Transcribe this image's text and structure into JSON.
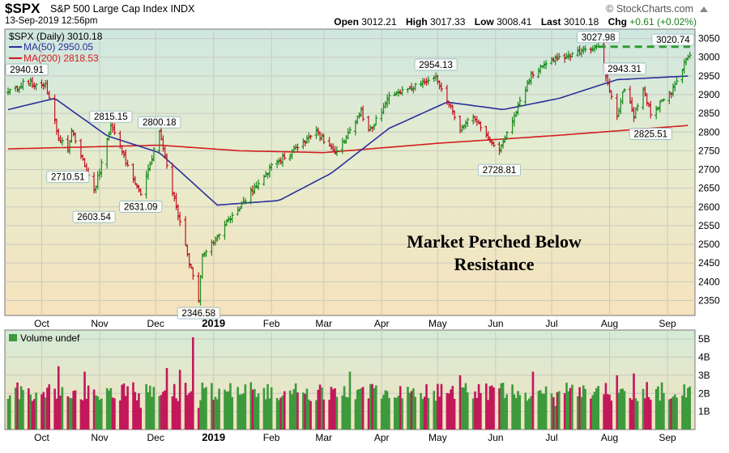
{
  "header": {
    "symbol": "$SPX",
    "description": "S&P 500 Large Cap Index INDX",
    "datetime": "13-Sep-2019 12:56pm",
    "brand": "© StockCharts.com",
    "open_label": "Open",
    "open": "3012.21",
    "high_label": "High",
    "high": "3017.33",
    "low_label": "Low",
    "low": "3008.41",
    "last_label": "Last",
    "last": "3010.18",
    "chg_label": "Chg",
    "chg": "+0.61 (+0.02%)",
    "chg_color": "#1a7f1a"
  },
  "legend": {
    "price": "$SPX (Daily) 3010.18",
    "ma50": "MA(50) 2950.05",
    "ma200": "MA(200) 2818.53",
    "volume": "Volume undef",
    "ma50_color": "#2a2f9c",
    "ma200_color": "#d21f1f"
  },
  "annotation": {
    "line1": "Market Perched Below",
    "line2": "Resistance"
  },
  "colors": {
    "up": "#1a8a1a",
    "down": "#c1121f",
    "vol_up": "#3c9a3c",
    "vol_down": "#c2185b",
    "resistance": "#2e9b2e"
  },
  "chart_data": [
    {
      "type": "line",
      "title": "$SPX (Daily) 3010.18",
      "x_ticks": [
        "Oct",
        "Nov",
        "Dec",
        "2019",
        "Feb",
        "Mar",
        "Apr",
        "May",
        "Jun",
        "Jul",
        "Aug",
        "Sep"
      ],
      "y_ticks": [
        2350,
        2400,
        2450,
        2500,
        2550,
        2600,
        2650,
        2700,
        2750,
        2800,
        2850,
        2900,
        2950,
        3000,
        3050
      ],
      "ylim": [
        2310,
        3075
      ],
      "price_waypoints": [
        {
          "date": "2018-09-13",
          "value": 2905
        },
        {
          "date": "2018-09-21",
          "value": 2930
        },
        {
          "date": "2018-10-03",
          "value": 2925
        },
        {
          "date": "2018-10-10",
          "value": 2785
        },
        {
          "date": "2018-10-15",
          "value": 2750
        },
        {
          "date": "2018-10-17",
          "value": 2810
        },
        {
          "date": "2018-10-29",
          "value": 2640
        },
        {
          "date": "2018-11-07",
          "value": 2815
        },
        {
          "date": "2018-11-23",
          "value": 2632
        },
        {
          "date": "2018-12-03",
          "value": 2800
        },
        {
          "date": "2018-12-10",
          "value": 2640
        },
        {
          "date": "2018-12-24",
          "value": 2351
        },
        {
          "date": "2018-12-26",
          "value": 2467
        },
        {
          "date": "2019-01-04",
          "value": 2532
        },
        {
          "date": "2019-02-01",
          "value": 2706
        },
        {
          "date": "2019-02-25",
          "value": 2800
        },
        {
          "date": "2019-03-08",
          "value": 2743
        },
        {
          "date": "2019-03-21",
          "value": 2854
        },
        {
          "date": "2019-03-25",
          "value": 2798
        },
        {
          "date": "2019-04-05",
          "value": 2892
        },
        {
          "date": "2019-04-30",
          "value": 2946
        },
        {
          "date": "2019-05-13",
          "value": 2812
        },
        {
          "date": "2019-05-20",
          "value": 2840
        },
        {
          "date": "2019-06-03",
          "value": 2744
        },
        {
          "date": "2019-06-20",
          "value": 2954
        },
        {
          "date": "2019-07-03",
          "value": 2996
        },
        {
          "date": "2019-07-26",
          "value": 3025
        },
        {
          "date": "2019-08-05",
          "value": 2844
        },
        {
          "date": "2019-08-09",
          "value": 2918
        },
        {
          "date": "2019-08-14",
          "value": 2840
        },
        {
          "date": "2019-08-19",
          "value": 2923
        },
        {
          "date": "2019-08-23",
          "value": 2847
        },
        {
          "date": "2019-09-03",
          "value": 2906
        },
        {
          "date": "2019-09-13",
          "value": 3010
        }
      ],
      "ma50_waypoints": [
        {
          "date": "2018-09-13",
          "value": 2860
        },
        {
          "date": "2018-10-08",
          "value": 2890
        },
        {
          "date": "2018-11-05",
          "value": 2790
        },
        {
          "date": "2018-12-03",
          "value": 2745
        },
        {
          "date": "2019-01-03",
          "value": 2605
        },
        {
          "date": "2019-02-05",
          "value": 2617
        },
        {
          "date": "2019-03-05",
          "value": 2690
        },
        {
          "date": "2019-04-05",
          "value": 2810
        },
        {
          "date": "2019-05-06",
          "value": 2880
        },
        {
          "date": "2019-06-05",
          "value": 2860
        },
        {
          "date": "2019-07-05",
          "value": 2890
        },
        {
          "date": "2019-08-05",
          "value": 2940
        },
        {
          "date": "2019-09-13",
          "value": 2950
        }
      ],
      "ma200_waypoints": [
        {
          "date": "2018-09-13",
          "value": 2755
        },
        {
          "date": "2018-12-03",
          "value": 2765
        },
        {
          "date": "2019-01-15",
          "value": 2750
        },
        {
          "date": "2019-03-01",
          "value": 2745
        },
        {
          "date": "2019-05-01",
          "value": 2770
        },
        {
          "date": "2019-07-01",
          "value": 2790
        },
        {
          "date": "2019-09-13",
          "value": 2818
        }
      ],
      "price_labels": [
        {
          "text": "2940.91",
          "date": "2018-09-21",
          "value": 2940.91
        },
        {
          "text": "2710.51",
          "date": "2018-10-15",
          "value": 2710.51
        },
        {
          "text": "2603.54",
          "date": "2018-10-29",
          "value": 2603.54
        },
        {
          "text": "2815.15",
          "date": "2018-11-07",
          "value": 2815.15
        },
        {
          "text": "2631.09",
          "date": "2018-11-23",
          "value": 2631.09
        },
        {
          "text": "2800.18",
          "date": "2018-12-03",
          "value": 2800.18
        },
        {
          "text": "2346.58",
          "date": "2018-12-24",
          "value": 2346.58
        },
        {
          "text": "2954.13",
          "date": "2019-04-30",
          "value": 2954.13
        },
        {
          "text": "2728.81",
          "date": "2019-06-03",
          "value": 2728.81
        },
        {
          "text": "3027.98",
          "date": "2019-07-26",
          "value": 3027.98
        },
        {
          "text": "2943.31",
          "date": "2019-08-09",
          "value": 2943.31
        },
        {
          "text": "2825.51",
          "date": "2019-08-23",
          "value": 2825.51
        },
        {
          "text": "3020.74",
          "date": "2019-09-13",
          "value": 3020.74
        }
      ],
      "resistance": {
        "value": 3027.98,
        "from": "2019-07-26",
        "to": "2019-09-13"
      }
    },
    {
      "type": "bar",
      "title": "Volume undef",
      "y_ticks": [
        "1B",
        "2B",
        "3B",
        "4B",
        "5B"
      ],
      "ylim": [
        0,
        5.5
      ],
      "unit": "billions",
      "typical_volume": 2.1,
      "spikes": [
        {
          "date": "2018-10-10",
          "value": 3.5
        },
        {
          "date": "2018-10-24",
          "value": 3.2
        },
        {
          "date": "2018-11-23",
          "value": 1.2
        },
        {
          "date": "2018-12-07",
          "value": 3.4
        },
        {
          "date": "2018-12-14",
          "value": 3.3
        },
        {
          "date": "2018-12-21",
          "value": 5.1
        },
        {
          "date": "2018-12-24",
          "value": 1.2
        },
        {
          "date": "2019-03-15",
          "value": 3.2
        },
        {
          "date": "2019-05-13",
          "value": 3.0
        },
        {
          "date": "2019-06-21",
          "value": 3.2
        },
        {
          "date": "2019-07-03",
          "value": 1.3
        },
        {
          "date": "2019-08-05",
          "value": 3.0
        },
        {
          "date": "2019-08-14",
          "value": 3.1
        }
      ]
    }
  ]
}
